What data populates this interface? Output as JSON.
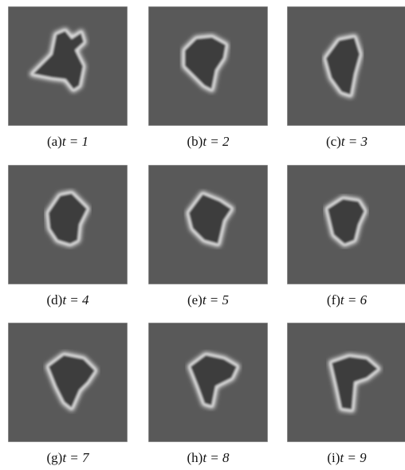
{
  "panels": [
    {
      "tag": "(a)",
      "expr": "t = 1"
    },
    {
      "tag": "(b)",
      "expr": "t = 2"
    },
    {
      "tag": "(c)",
      "expr": "t = 3"
    },
    {
      "tag": "(d)",
      "expr": "t = 4"
    },
    {
      "tag": "(e)",
      "expr": "t = 5"
    },
    {
      "tag": "(f)",
      "expr": "t = 6"
    },
    {
      "tag": "(g)",
      "expr": "t = 7"
    },
    {
      "tag": "(h)",
      "expr": "t = 8"
    },
    {
      "tag": "(i)",
      "expr": "t = 9"
    }
  ]
}
